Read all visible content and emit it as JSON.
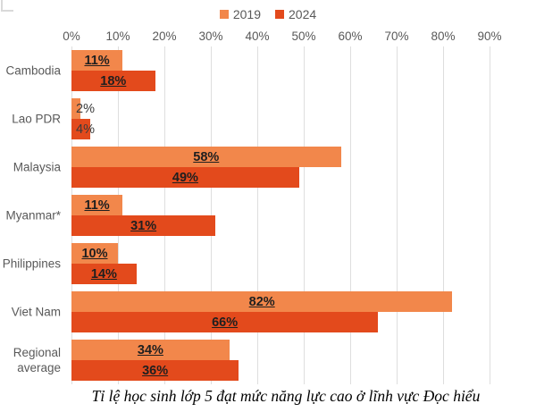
{
  "chart_data": {
    "type": "bar",
    "orientation": "horizontal",
    "title": "",
    "caption": "Tỉ lệ học sinh lớp 5 đạt mức năng lực cao ở lĩnh vực Đọc hiểu",
    "categories": [
      "Cambodia",
      "Lao PDR",
      "Malaysia",
      "Myanmar*",
      "Philippines",
      "Viet Nam",
      "Regional average"
    ],
    "series": [
      {
        "name": "2019",
        "color": "#F2874B",
        "values": [
          11,
          2,
          58,
          11,
          10,
          82,
          34
        ]
      },
      {
        "name": "2024",
        "color": "#E34A1C",
        "values": [
          18,
          4,
          49,
          31,
          14,
          66,
          36
        ]
      }
    ],
    "value_suffix": "%",
    "x_tick_labels": [
      "0%",
      "10%",
      "20%",
      "30%",
      "40%",
      "50%",
      "60%",
      "70%",
      "80%",
      "90%"
    ],
    "xlim": [
      0,
      100
    ],
    "grid": "vertical",
    "gridline_color": "#dedede",
    "legend_position": "top-center",
    "text_color": "#595959",
    "data_label_color": "#1f1f1f"
  }
}
